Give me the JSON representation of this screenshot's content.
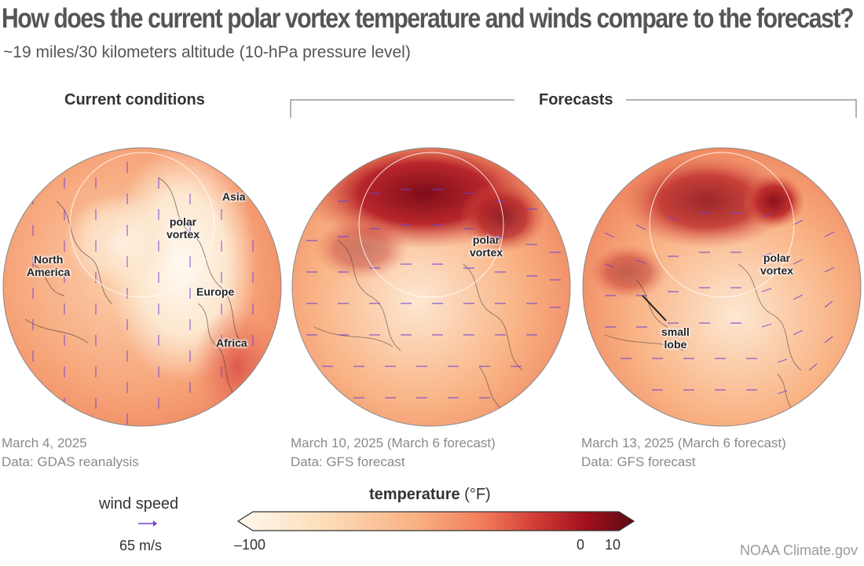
{
  "header": {
    "title": "How does the current polar vortex temperature and winds compare to the forecast?",
    "subtitle": "~19 miles/30 kilometers altitude (10-hPa pressure level)"
  },
  "panel_headings": {
    "current": "Current conditions",
    "forecasts": "Forecasts"
  },
  "panels": [
    {
      "labels": {
        "polar_vortex": "polar\nvortex",
        "north_america": "North\nAmerica",
        "asia": "Asia",
        "europe": "Europe",
        "africa": "Africa"
      },
      "date": "March 4, 2025",
      "source": "Data: GDAS reanalysis"
    },
    {
      "labels": {
        "polar_vortex": "polar\nvortex"
      },
      "date": "March 10, 2025 (March 6 forecast)",
      "source": "Data: GFS forecast"
    },
    {
      "labels": {
        "polar_vortex": "polar\nvortex",
        "small_lobe": "small\nlobe"
      },
      "date": "March 13, 2025 (March 6 forecast)",
      "source": "Data: GFS forecast"
    }
  ],
  "legend": {
    "wind_title": "wind speed",
    "wind_value": "65 m/s",
    "wind_arrow_color": "#7a3fd0",
    "temp_title_bold": "temperature",
    "temp_title_unit": " (°F)",
    "tick_min": "–100",
    "tick_zero": "0",
    "tick_max": "10",
    "colorbar_colors": [
      "#fff8ef",
      "#fde0bd",
      "#f9b183",
      "#f17c5a",
      "#d23d36",
      "#a10f1d",
      "#5c0a12"
    ]
  },
  "credit": "NOAA Climate.gov",
  "colors": {
    "globe_warm": "#f59a6c",
    "globe_mid": "#fbc9a2",
    "globe_cold": "#fff4e8",
    "warm_dark": "#a8141f",
    "arrows": "#6c3fd4"
  }
}
